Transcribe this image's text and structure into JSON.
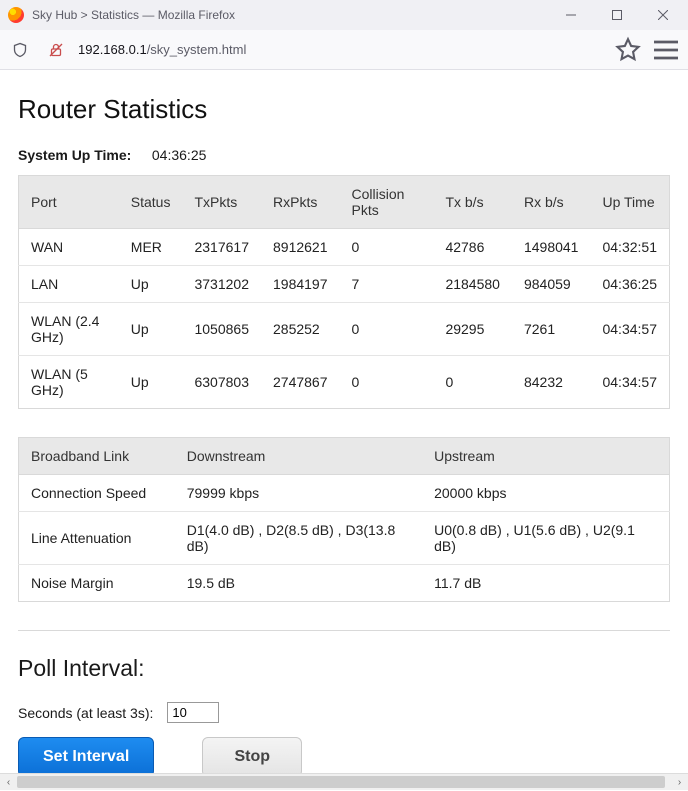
{
  "window": {
    "title": "Sky Hub > Statistics — Mozilla Firefox"
  },
  "toolbar": {
    "url_prefix": "192.168.0.1",
    "url_path": "/sky_system.html"
  },
  "page": {
    "title": "Router Statistics",
    "uptime_label": "System Up Time:",
    "uptime_value": "04:36:25",
    "stats_table": {
      "columns": [
        "Port",
        "Status",
        "TxPkts",
        "RxPkts",
        "Collision Pkts",
        "Tx b/s",
        "Rx b/s",
        "Up Time"
      ],
      "rows": [
        [
          "WAN",
          "MER",
          "2317617",
          "8912621",
          "0",
          "42786",
          "1498041",
          "04:32:51"
        ],
        [
          "LAN",
          "Up",
          "3731202",
          "1984197",
          "7",
          "2184580",
          "984059",
          "04:36:25"
        ],
        [
          "WLAN (2.4 GHz)",
          "Up",
          "1050865",
          "285252",
          "0",
          "29295",
          "7261",
          "04:34:57"
        ],
        [
          "WLAN (5 GHz)",
          "Up",
          "6307803",
          "2747867",
          "0",
          "0",
          "84232",
          "04:34:57"
        ]
      ]
    },
    "bb_table": {
      "columns": [
        "Broadband Link",
        "Downstream",
        "Upstream"
      ],
      "rows": [
        [
          "Connection Speed",
          "79999 kbps",
          "20000 kbps"
        ],
        [
          "Line Attenuation",
          "D1(4.0 dB) , D2(8.5 dB) , D3(13.8 dB)",
          "U0(0.8 dB) , U1(5.6 dB) , U2(9.1 dB)"
        ],
        [
          "Noise Margin",
          "19.5 dB",
          "11.7 dB"
        ]
      ]
    },
    "poll": {
      "heading": "Poll Interval:",
      "label": "Seconds (at least 3s):",
      "value": "10",
      "set_label": "Set Interval",
      "stop_label": "Stop"
    }
  }
}
